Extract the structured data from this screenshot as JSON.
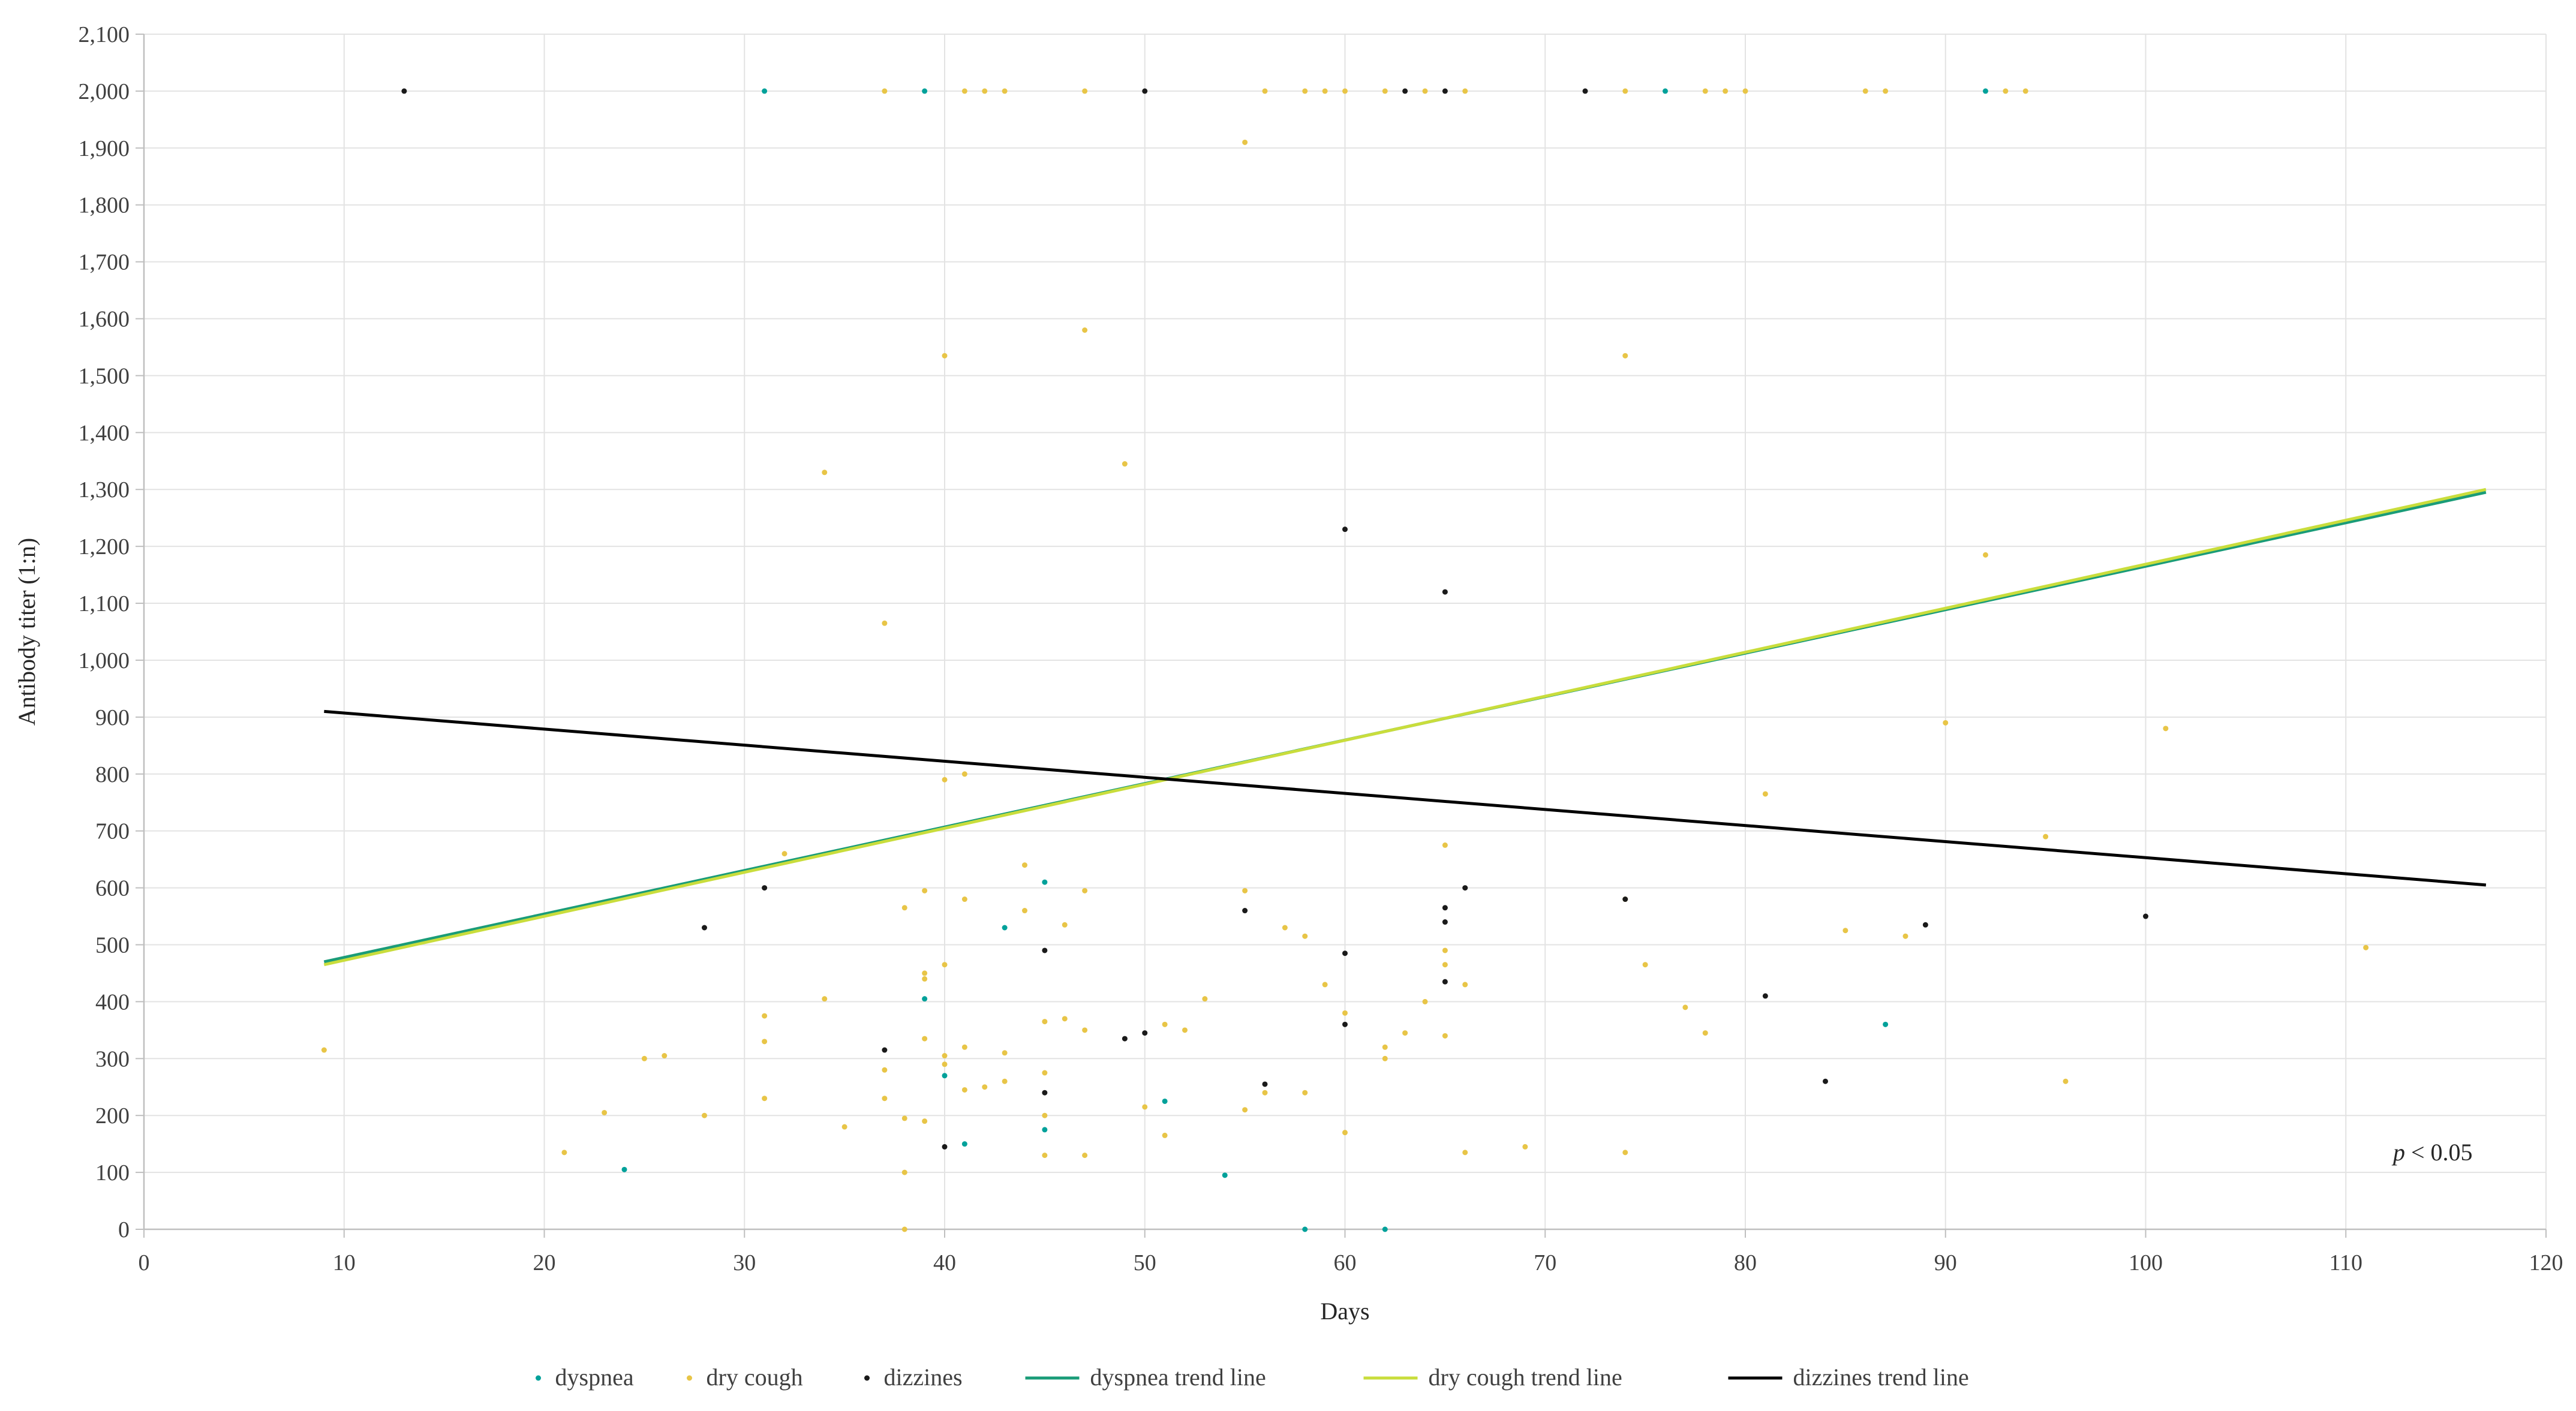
{
  "chart_data": {
    "type": "scatter",
    "xlabel": "Days",
    "ylabel": "Antibody titer (1:n)",
    "xlim": [
      0,
      120
    ],
    "ylim": [
      0,
      2100
    ],
    "x_ticks": [
      "0",
      "10",
      "20",
      "30",
      "40",
      "50",
      "60",
      "70",
      "80",
      "90",
      "100",
      "110",
      "120"
    ],
    "y_ticks": [
      "0",
      "100",
      "200",
      "300",
      "400",
      "500",
      "600",
      "700",
      "800",
      "900",
      "1,000",
      "1,100",
      "1,200",
      "1,300",
      "1,400",
      "1,500",
      "1,600",
      "1,700",
      "1,800",
      "1,900",
      "2,000",
      "2,100"
    ],
    "grid": true,
    "legend_position": "bottom",
    "annotation": {
      "italic": "p",
      "text": " < 0.05"
    },
    "series": [
      {
        "name": "dyspnea",
        "kind": "points",
        "color": "#00a19a",
        "points": [
          [
            24,
            105
          ],
          [
            31,
            2000
          ],
          [
            39,
            2000
          ],
          [
            39,
            405
          ],
          [
            40,
            270
          ],
          [
            41,
            150
          ],
          [
            43,
            530
          ],
          [
            45,
            610
          ],
          [
            45,
            175
          ],
          [
            51,
            225
          ],
          [
            54,
            95
          ],
          [
            58,
            0
          ],
          [
            62,
            0
          ],
          [
            76,
            2000
          ],
          [
            87,
            360
          ],
          [
            92,
            2000
          ]
        ]
      },
      {
        "name": "dry cough",
        "kind": "points",
        "color": "#e8c547",
        "points": [
          [
            9,
            315
          ],
          [
            21,
            135
          ],
          [
            23,
            205
          ],
          [
            25,
            300
          ],
          [
            26,
            305
          ],
          [
            28,
            200
          ],
          [
            31,
            375
          ],
          [
            31,
            330
          ],
          [
            31,
            230
          ],
          [
            32,
            660
          ],
          [
            34,
            1330
          ],
          [
            34,
            405
          ],
          [
            35,
            180
          ],
          [
            37,
            2000
          ],
          [
            37,
            1065
          ],
          [
            37,
            280
          ],
          [
            37,
            230
          ],
          [
            38,
            565
          ],
          [
            38,
            195
          ],
          [
            38,
            100
          ],
          [
            38,
            0
          ],
          [
            39,
            595
          ],
          [
            39,
            450
          ],
          [
            39,
            440
          ],
          [
            39,
            335
          ],
          [
            39,
            190
          ],
          [
            40,
            1535
          ],
          [
            40,
            790
          ],
          [
            40,
            465
          ],
          [
            40,
            305
          ],
          [
            40,
            290
          ],
          [
            41,
            2000
          ],
          [
            41,
            800
          ],
          [
            41,
            580
          ],
          [
            41,
            320
          ],
          [
            41,
            245
          ],
          [
            42,
            2000
          ],
          [
            42,
            250
          ],
          [
            43,
            2000
          ],
          [
            43,
            310
          ],
          [
            43,
            260
          ],
          [
            44,
            640
          ],
          [
            44,
            560
          ],
          [
            45,
            365
          ],
          [
            45,
            275
          ],
          [
            45,
            200
          ],
          [
            45,
            130
          ],
          [
            46,
            535
          ],
          [
            46,
            370
          ],
          [
            47,
            2000
          ],
          [
            47,
            1580
          ],
          [
            47,
            595
          ],
          [
            47,
            350
          ],
          [
            47,
            130
          ],
          [
            49,
            1345
          ],
          [
            50,
            215
          ],
          [
            51,
            360
          ],
          [
            51,
            165
          ],
          [
            52,
            350
          ],
          [
            53,
            405
          ],
          [
            55,
            1910
          ],
          [
            55,
            595
          ],
          [
            55,
            210
          ],
          [
            56,
            2000
          ],
          [
            56,
            240
          ],
          [
            57,
            530
          ],
          [
            58,
            2000
          ],
          [
            58,
            515
          ],
          [
            58,
            240
          ],
          [
            59,
            2000
          ],
          [
            59,
            430
          ],
          [
            60,
            2000
          ],
          [
            60,
            380
          ],
          [
            60,
            170
          ],
          [
            62,
            2000
          ],
          [
            62,
            320
          ],
          [
            62,
            300
          ],
          [
            63,
            345
          ],
          [
            64,
            2000
          ],
          [
            64,
            400
          ],
          [
            65,
            675
          ],
          [
            65,
            490
          ],
          [
            65,
            465
          ],
          [
            65,
            340
          ],
          [
            66,
            2000
          ],
          [
            66,
            430
          ],
          [
            66,
            135
          ],
          [
            69,
            145
          ],
          [
            74,
            2000
          ],
          [
            74,
            1535
          ],
          [
            74,
            580
          ],
          [
            74,
            135
          ],
          [
            75,
            465
          ],
          [
            77,
            390
          ],
          [
            78,
            2000
          ],
          [
            78,
            345
          ],
          [
            79,
            2000
          ],
          [
            80,
            2000
          ],
          [
            81,
            765
          ],
          [
            85,
            525
          ],
          [
            86,
            2000
          ],
          [
            87,
            2000
          ],
          [
            88,
            515
          ],
          [
            90,
            890
          ],
          [
            92,
            1185
          ],
          [
            93,
            2000
          ],
          [
            94,
            2000
          ],
          [
            95,
            690
          ],
          [
            96,
            260
          ],
          [
            101,
            880
          ],
          [
            111,
            495
          ]
        ]
      },
      {
        "name": "dizzines",
        "kind": "points",
        "color": "#1a1a1a",
        "points": [
          [
            13,
            2000
          ],
          [
            28,
            530
          ],
          [
            31,
            600
          ],
          [
            37,
            315
          ],
          [
            40,
            145
          ],
          [
            45,
            490
          ],
          [
            45,
            240
          ],
          [
            49,
            335
          ],
          [
            50,
            2000
          ],
          [
            50,
            345
          ],
          [
            55,
            560
          ],
          [
            56,
            255
          ],
          [
            60,
            1230
          ],
          [
            60,
            485
          ],
          [
            60,
            360
          ],
          [
            63,
            2000
          ],
          [
            65,
            2000
          ],
          [
            65,
            1120
          ],
          [
            65,
            565
          ],
          [
            65,
            540
          ],
          [
            65,
            435
          ],
          [
            66,
            600
          ],
          [
            72,
            2000
          ],
          [
            74,
            580
          ],
          [
            81,
            410
          ],
          [
            84,
            260
          ],
          [
            89,
            535
          ],
          [
            100,
            550
          ]
        ]
      },
      {
        "name": "dyspnea trend line",
        "kind": "line",
        "color": "#1a9c78",
        "points": [
          [
            9,
            470
          ],
          [
            117,
            1295
          ]
        ]
      },
      {
        "name": "dry cough trend line",
        "kind": "line",
        "color": "#c9dd3c",
        "points": [
          [
            9,
            465
          ],
          [
            117,
            1300
          ]
        ]
      },
      {
        "name": "dizzines trend line",
        "kind": "line",
        "color": "#000000",
        "points": [
          [
            9,
            910
          ],
          [
            117,
            605
          ]
        ]
      }
    ]
  }
}
